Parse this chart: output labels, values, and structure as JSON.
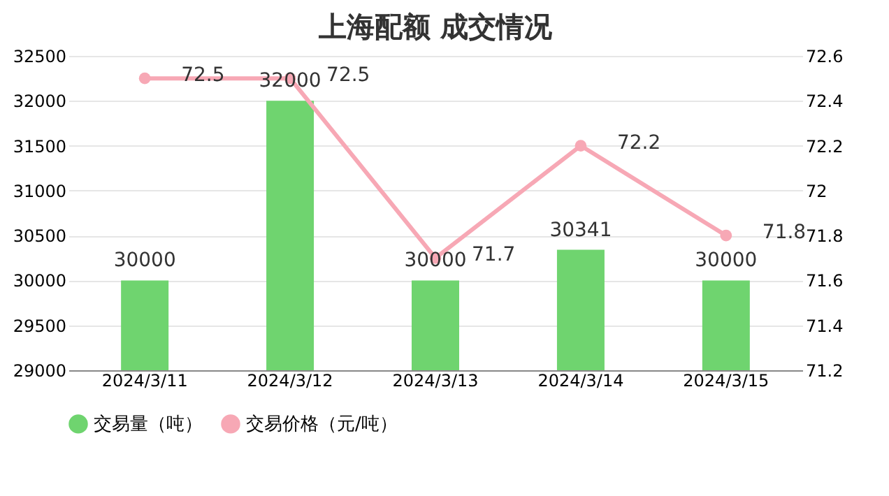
{
  "chart_data": {
    "type": "bar",
    "title": "上海配额 成交情况",
    "categories": [
      "2024/3/11",
      "2024/3/12",
      "2024/3/13",
      "2024/3/14",
      "2024/3/15"
    ],
    "series": [
      {
        "name": "交易量（吨）",
        "type": "bar",
        "color": "#6fd46f",
        "values": [
          30000,
          32000,
          30000,
          30341,
          30000
        ]
      },
      {
        "name": "交易价格（元/吨）",
        "type": "line",
        "axis": "y2",
        "color": "#f7a8b5",
        "values": [
          72.5,
          72.5,
          71.7,
          72.2,
          71.8
        ]
      }
    ],
    "ylim": [
      29000,
      32500
    ],
    "yticks": [
      29000,
      29500,
      30000,
      30500,
      31000,
      31500,
      32000,
      32500
    ],
    "y2lim": [
      71.2,
      72.6
    ],
    "y2ticks": [
      71.2,
      71.4,
      71.6,
      71.8,
      72,
      72.2,
      72.4,
      72.6
    ],
    "grid": "y",
    "legend": "bottom",
    "marker": "circle",
    "line_style": "solid",
    "data_labels": true
  }
}
